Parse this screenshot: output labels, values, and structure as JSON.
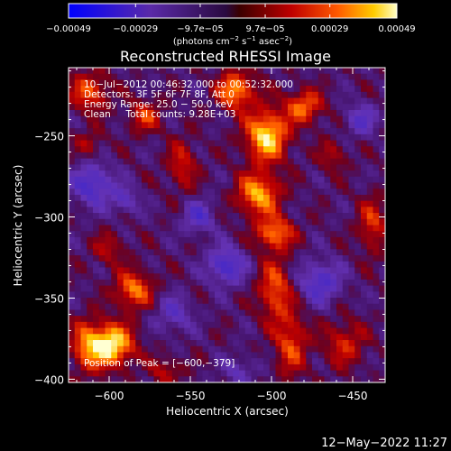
{
  "chart_data": {
    "type": "heatmap",
    "title": "Reconstructed RHESSI Image",
    "xlabel": "Heliocentric X (arcsec)",
    "ylabel": "Heliocentric Y (arcsec)",
    "xlim": [
      -625,
      -430
    ],
    "ylim": [
      -402,
      -208
    ],
    "x_ticks": [
      -600,
      -550,
      -500,
      -450
    ],
    "x_tick_labels": [
      "−600",
      "−550",
      "−500",
      "−450"
    ],
    "y_ticks": [
      -250,
      -300,
      -350,
      -400
    ],
    "y_tick_labels": [
      "−250",
      "−300",
      "−350",
      "−400"
    ],
    "colorbar": {
      "range": [
        -0.00049,
        0.00049
      ],
      "ticks": [
        -0.00049,
        -0.00029,
        -9.7e-05,
        9.7e-05,
        0.00029,
        0.00049
      ],
      "tick_labels": [
        "−0.00049",
        "−0.00029",
        "−9.7e−05",
        "9.7e−05",
        "0.00029",
        "0.00049"
      ],
      "unit_label_parts": [
        "(photons cm",
        "−2",
        " s",
        "−1",
        " asec",
        "−2",
        ")"
      ]
    },
    "annotations": [
      "10−Jul−2012 00:46:32.000 to 00:52:32.000",
      "Detectors: 3F 5F 6F 7F 8F, Att 0",
      "Energy Range: 25.0 − 50.0 keV",
      "Clean     Total counts: 9.28E+03"
    ],
    "peak_label": "Position of Peak = [−600,−379]",
    "peak_position": [
      -600,
      -379
    ],
    "sources": [
      {
        "x": -600,
        "y": -379,
        "sx": 10,
        "sy": 9,
        "amp": 0.00052
      },
      {
        "x": -503,
        "y": -250,
        "sx": 9,
        "sy": 11,
        "amp": 0.00045
      },
      {
        "x": -522,
        "y": -222,
        "sx": 8,
        "sy": 8,
        "amp": 0.00036
      },
      {
        "x": -508,
        "y": -286,
        "sx": 9,
        "sy": 9,
        "amp": 0.00038
      },
      {
        "x": -498,
        "y": -310,
        "sx": 8,
        "sy": 7,
        "amp": 0.00033
      },
      {
        "x": -480,
        "y": -232,
        "sx": 8,
        "sy": 7,
        "amp": 0.0003
      },
      {
        "x": -585,
        "y": -345,
        "sx": 8,
        "sy": 8,
        "amp": 0.00032
      },
      {
        "x": -612,
        "y": -223,
        "sx": 8,
        "sy": 8,
        "amp": 0.00028
      },
      {
        "x": -498,
        "y": -345,
        "sx": 7,
        "sy": 13,
        "amp": 0.00028
      },
      {
        "x": -488,
        "y": -378,
        "sx": 7,
        "sy": 14,
        "amp": 0.00025
      },
      {
        "x": -578,
        "y": -238,
        "sx": 7,
        "sy": 7,
        "amp": 0.00022
      },
      {
        "x": -555,
        "y": -268,
        "sx": 6,
        "sy": 11,
        "amp": 0.0002
      },
      {
        "x": -438,
        "y": -305,
        "sx": 6,
        "sy": 12,
        "amp": 0.00022
      },
      {
        "x": -455,
        "y": -378,
        "sx": 9,
        "sy": 10,
        "amp": 0.0002
      },
      {
        "x": -615,
        "y": -380,
        "sx": 6,
        "sy": 12,
        "amp": 0.0002
      },
      {
        "x": -600,
        "y": -320,
        "sx": 7,
        "sy": 7,
        "amp": 0.00015
      },
      {
        "x": -565,
        "y": -395,
        "sx": 7,
        "sy": 6,
        "amp": 0.00016
      },
      {
        "x": -462,
        "y": -262,
        "sx": 6,
        "sy": 7,
        "amp": 0.00015
      },
      {
        "x": -612,
        "y": -255,
        "sx": 6,
        "sy": 6,
        "amp": 0.00014
      },
      {
        "x": -528,
        "y": -330,
        "sx": 8,
        "sy": 8,
        "amp": -0.0003
      },
      {
        "x": -610,
        "y": -280,
        "sx": 9,
        "sy": 9,
        "amp": -0.00028
      },
      {
        "x": -470,
        "y": -340,
        "sx": 9,
        "sy": 9,
        "amp": -0.00026
      },
      {
        "x": -545,
        "y": -300,
        "sx": 7,
        "sy": 7,
        "amp": -0.00022
      },
      {
        "x": -445,
        "y": -240,
        "sx": 7,
        "sy": 7,
        "amp": -0.0002
      },
      {
        "x": -560,
        "y": -360,
        "sx": 8,
        "sy": 8,
        "amp": -0.00018
      },
      {
        "x": -590,
        "y": -290,
        "sx": 6,
        "sy": 6,
        "amp": -0.00018
      },
      {
        "x": -520,
        "y": -395,
        "sx": 7,
        "sy": 6,
        "amp": -0.00015
      }
    ]
  },
  "footer": {
    "timestamp": "12−May−2022 11:27"
  }
}
